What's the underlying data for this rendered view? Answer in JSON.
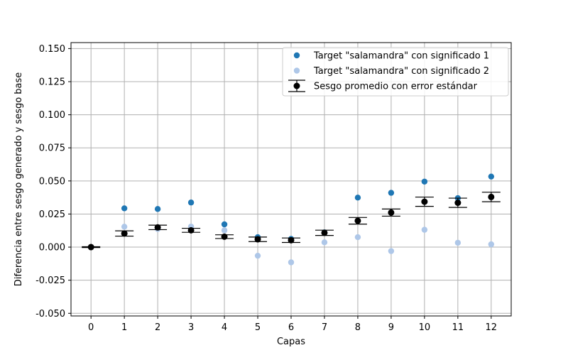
{
  "chart_data": {
    "type": "scatter",
    "title": "",
    "xlabel": "Capas",
    "ylabel": "Diferencia entre sesgo generado y sesgo base",
    "xlim": [
      -0.6,
      12.6
    ],
    "ylim": [
      -0.052,
      0.1545
    ],
    "x_ticks": [
      "0",
      "1",
      "2",
      "3",
      "4",
      "5",
      "6",
      "7",
      "8",
      "9",
      "10",
      "11",
      "12"
    ],
    "y_ticks": [
      "-0.050",
      "-0.025",
      "0.000",
      "0.025",
      "0.050",
      "0.075",
      "0.100",
      "0.125",
      "0.150"
    ],
    "grid": true,
    "legend_position": "top-right",
    "series": [
      {
        "name": "Target \"salamandra\" con significado 1",
        "kind": "scatter",
        "color": "#1f77b4",
        "x": [
          1,
          2,
          3,
          4,
          5,
          6,
          7,
          8,
          9,
          10,
          11,
          12
        ],
        "values": [
          0.0293,
          0.0288,
          0.0337,
          0.0172,
          0.0075,
          0.0062,
          0.0111,
          0.0374,
          0.041,
          0.0495,
          0.037,
          0.0533
        ]
      },
      {
        "name": "Target \"salamandra\" con significado 2",
        "kind": "scatter",
        "color": "#aec7e8",
        "x": [
          1,
          2,
          3,
          4,
          5,
          6,
          7,
          8,
          9,
          10,
          11,
          12
        ],
        "values": [
          0.0154,
          0.0137,
          0.0155,
          0.0127,
          -0.0065,
          -0.0115,
          0.0036,
          0.0075,
          -0.003,
          0.0131,
          0.0033,
          0.0021
        ]
      },
      {
        "name": "Sesgo promedio con error estándar",
        "kind": "errorbar",
        "color": "#000000",
        "x": [
          0,
          1,
          2,
          3,
          4,
          5,
          6,
          7,
          8,
          9,
          10,
          11,
          12
        ],
        "values": [
          0.0,
          0.0103,
          0.0149,
          0.0127,
          0.0079,
          0.0059,
          0.0052,
          0.0108,
          0.0199,
          0.0261,
          0.0343,
          0.0335,
          0.0379
        ],
        "errors": [
          0.0003,
          0.002,
          0.0017,
          0.0015,
          0.0014,
          0.0017,
          0.0017,
          0.002,
          0.0025,
          0.0027,
          0.0035,
          0.0035,
          0.0036
        ]
      }
    ]
  }
}
